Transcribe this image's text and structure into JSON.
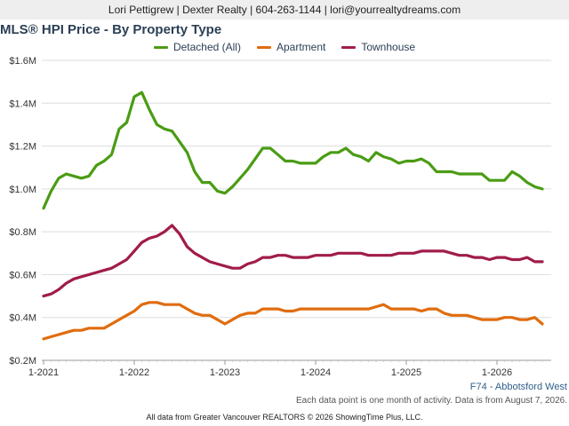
{
  "header": {
    "text": "Lori Pettigrew | Dexter Realty | 604-263-1144 | lori@yourrealtydreams.com"
  },
  "footer": {
    "region": "F74 - Abbotsford West",
    "note": "Each data point is one month of activity. Data is from August 7, 2026.",
    "copyright": "All data from Greater Vancouver REALTORS © 2026 ShowingTime Plus, LLC."
  },
  "chart_data": {
    "type": "line",
    "title": "MLS® HPI Price - By Property Type",
    "xlabel": "",
    "ylabel": "",
    "x_ticks": [
      "1-2021",
      "1-2022",
      "1-2023",
      "1-2024",
      "1-2025",
      "1-2026"
    ],
    "y_ticks": [
      "$0.2M",
      "$0.4M",
      "$0.6M",
      "$0.8M",
      "$1.0M",
      "$1.2M",
      "$1.4M",
      "$1.6M"
    ],
    "ylim": [
      0.2,
      1.6
    ],
    "x": [
      "1-2021",
      "2-2021",
      "3-2021",
      "4-2021",
      "5-2021",
      "6-2021",
      "7-2021",
      "8-2021",
      "9-2021",
      "10-2021",
      "11-2021",
      "12-2021",
      "1-2022",
      "2-2022",
      "3-2022",
      "4-2022",
      "5-2022",
      "6-2022",
      "7-2022",
      "8-2022",
      "9-2022",
      "10-2022",
      "11-2022",
      "12-2022",
      "1-2023",
      "2-2023",
      "3-2023",
      "4-2023",
      "5-2023",
      "6-2023",
      "7-2023",
      "8-2023",
      "9-2023",
      "10-2023",
      "11-2023",
      "12-2023",
      "1-2024",
      "2-2024",
      "3-2024",
      "4-2024",
      "5-2024",
      "6-2024",
      "7-2024",
      "8-2024",
      "9-2024",
      "10-2024",
      "11-2024",
      "12-2024",
      "1-2025",
      "2-2025",
      "3-2025",
      "4-2025",
      "5-2025",
      "6-2025",
      "7-2025",
      "8-2025",
      "9-2025",
      "10-2025",
      "11-2025",
      "12-2025",
      "1-2026",
      "2-2026",
      "3-2026",
      "4-2026",
      "5-2026",
      "6-2026",
      "7-2026"
    ],
    "legend_position": "top-center",
    "grid": true,
    "series": [
      {
        "name": "Detached (All)",
        "color": "#4a9c14",
        "values": [
          0.91,
          0.99,
          1.05,
          1.07,
          1.06,
          1.05,
          1.06,
          1.11,
          1.13,
          1.16,
          1.28,
          1.31,
          1.43,
          1.45,
          1.37,
          1.3,
          1.28,
          1.27,
          1.22,
          1.17,
          1.08,
          1.03,
          1.03,
          0.99,
          0.98,
          1.01,
          1.05,
          1.09,
          1.14,
          1.19,
          1.19,
          1.16,
          1.13,
          1.13,
          1.12,
          1.12,
          1.12,
          1.15,
          1.17,
          1.17,
          1.19,
          1.16,
          1.15,
          1.13,
          1.17,
          1.15,
          1.14,
          1.12,
          1.13,
          1.13,
          1.14,
          1.12,
          1.08,
          1.08,
          1.08,
          1.07,
          1.07,
          1.07,
          1.07,
          1.04,
          1.04,
          1.04,
          1.08,
          1.06,
          1.03,
          1.01,
          1.0
        ]
      },
      {
        "name": "Apartment",
        "color": "#e06c0e",
        "values": [
          0.3,
          0.31,
          0.32,
          0.33,
          0.34,
          0.34,
          0.35,
          0.35,
          0.35,
          0.37,
          0.39,
          0.41,
          0.43,
          0.46,
          0.47,
          0.47,
          0.46,
          0.46,
          0.46,
          0.44,
          0.42,
          0.41,
          0.41,
          0.39,
          0.37,
          0.39,
          0.41,
          0.42,
          0.42,
          0.44,
          0.44,
          0.44,
          0.43,
          0.43,
          0.44,
          0.44,
          0.44,
          0.44,
          0.44,
          0.44,
          0.44,
          0.44,
          0.44,
          0.44,
          0.45,
          0.46,
          0.44,
          0.44,
          0.44,
          0.44,
          0.43,
          0.44,
          0.44,
          0.42,
          0.41,
          0.41,
          0.41,
          0.4,
          0.39,
          0.39,
          0.39,
          0.4,
          0.4,
          0.39,
          0.39,
          0.4,
          0.37
        ]
      },
      {
        "name": "Townhouse",
        "color": "#a01c4b",
        "values": [
          0.5,
          0.51,
          0.53,
          0.56,
          0.58,
          0.59,
          0.6,
          0.61,
          0.62,
          0.63,
          0.65,
          0.67,
          0.71,
          0.75,
          0.77,
          0.78,
          0.8,
          0.83,
          0.79,
          0.73,
          0.7,
          0.68,
          0.66,
          0.65,
          0.64,
          0.63,
          0.63,
          0.65,
          0.66,
          0.68,
          0.68,
          0.69,
          0.69,
          0.68,
          0.68,
          0.68,
          0.69,
          0.69,
          0.69,
          0.7,
          0.7,
          0.7,
          0.7,
          0.69,
          0.69,
          0.69,
          0.69,
          0.7,
          0.7,
          0.7,
          0.71,
          0.71,
          0.71,
          0.71,
          0.7,
          0.69,
          0.69,
          0.68,
          0.68,
          0.67,
          0.68,
          0.68,
          0.67,
          0.67,
          0.68,
          0.66,
          0.66
        ]
      }
    ]
  }
}
